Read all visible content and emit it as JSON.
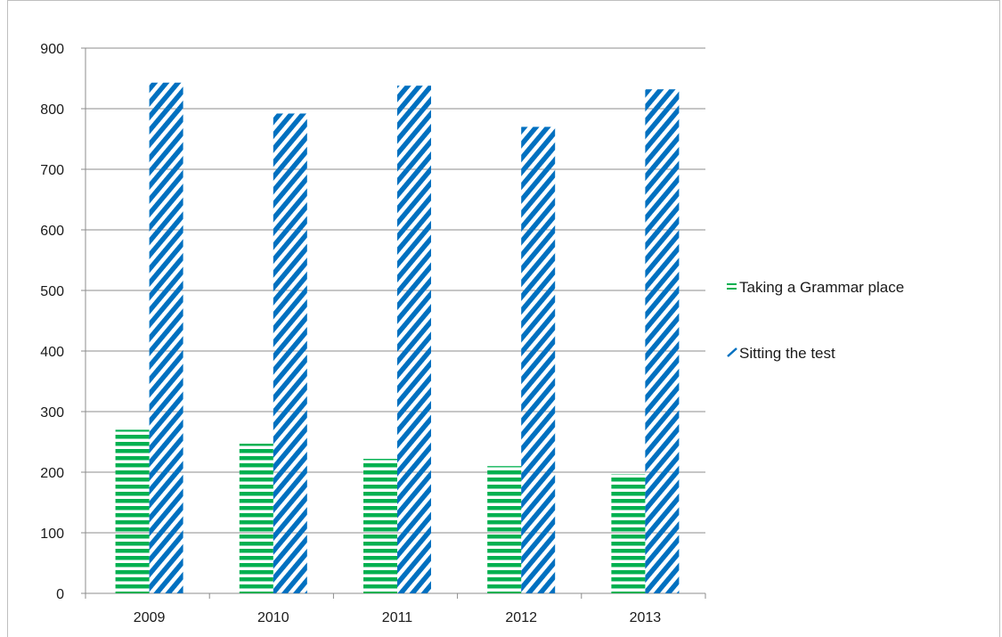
{
  "chart_data": {
    "type": "bar",
    "categories": [
      "2009",
      "2010",
      "2011",
      "2012",
      "2013"
    ],
    "series": [
      {
        "name": "Taking a Grammar place",
        "values": [
          270,
          247,
          222,
          210,
          197
        ],
        "color": "#00b050",
        "pattern": "horizontal-stripes"
      },
      {
        "name": "Sitting the test",
        "values": [
          843,
          792,
          838,
          770,
          832
        ],
        "color": "#0070c0",
        "pattern": "diagonal-stripes"
      }
    ],
    "yticks": [
      "0",
      "100",
      "200",
      "300",
      "400",
      "500",
      "600",
      "700",
      "800",
      "900"
    ],
    "ylim": [
      0,
      900
    ],
    "grid": true,
    "legend_position": "right",
    "title": "",
    "xlabel": "",
    "ylabel": ""
  }
}
